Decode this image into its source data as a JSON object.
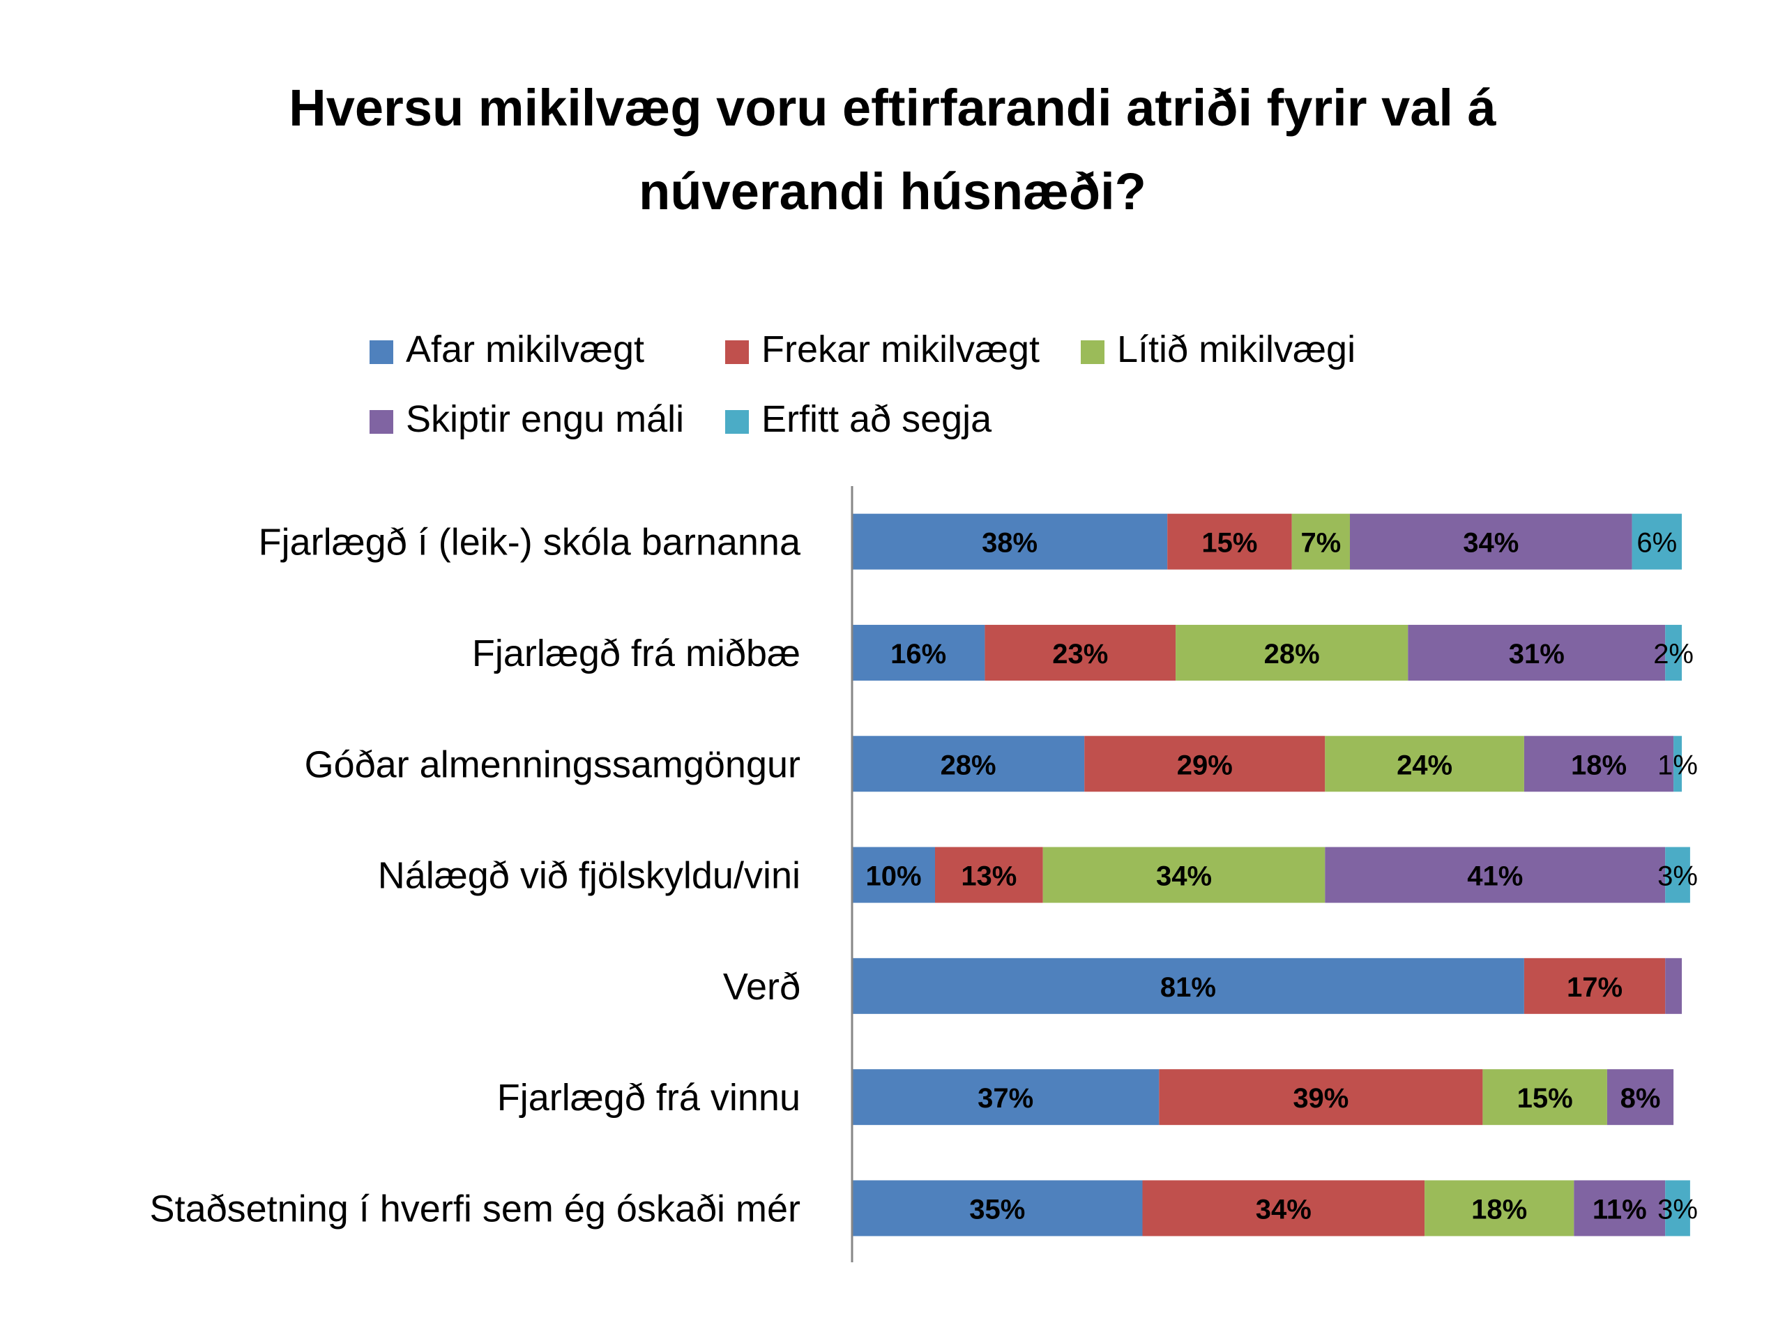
{
  "chart_data": {
    "type": "bar",
    "orientation": "horizontal",
    "stacked": true,
    "title_lines": [
      "Hversu mikilvæg voru eftirfarandi atriði fyrir val á",
      "núverandi húsnæði?"
    ],
    "title": "Hversu mikilvæg voru eftirfarandi atriði fyrir val á núverandi húsnæði?",
    "xlabel": "",
    "ylabel": "",
    "xlim": [
      0,
      100
    ],
    "grid": false,
    "legend_position": "top",
    "categories": [
      "Fjarlægð í (leik-) skóla barnanna",
      "Fjarlægð frá miðbæ",
      "Góðar almenningssamgöngur",
      "Nálægð við fjölskyldu/vini",
      "Verð",
      "Fjarlægð frá vinnu",
      "Staðsetning í hverfi sem ég óskaði mér"
    ],
    "series": [
      {
        "name": "Afar mikilvægt",
        "color": "#4F81BD",
        "values": [
          38,
          16,
          28,
          10,
          81,
          37,
          35
        ]
      },
      {
        "name": "Frekar mikilvægt",
        "color": "#C0504D",
        "values": [
          15,
          23,
          29,
          13,
          17,
          39,
          34
        ]
      },
      {
        "name": "Lítið mikilvægi",
        "color": "#9BBB59",
        "values": [
          7,
          28,
          24,
          34,
          0,
          15,
          18
        ]
      },
      {
        "name": "Skiptir engu máli",
        "color": "#8064A2",
        "values": [
          34,
          31,
          18,
          41,
          2,
          8,
          11
        ]
      },
      {
        "name": "Erfitt að segja",
        "color": "#4BACC6",
        "values": [
          6,
          2,
          1,
          3,
          0,
          0,
          3
        ]
      }
    ],
    "data_labels": [
      [
        "38%",
        "15%",
        "7%",
        "34%",
        "6%"
      ],
      [
        "16%",
        "23%",
        "28%",
        "31%",
        "2%"
      ],
      [
        "28%",
        "29%",
        "24%",
        "18%",
        "1%"
      ],
      [
        "10%",
        "13%",
        "34%",
        "41%",
        "3%"
      ],
      [
        "81%",
        "17%",
        "",
        "",
        ""
      ],
      [
        "37%",
        "39%",
        "15%",
        "8%",
        ""
      ],
      [
        "35%",
        "34%",
        "18%",
        "11%",
        "3%"
      ]
    ]
  }
}
